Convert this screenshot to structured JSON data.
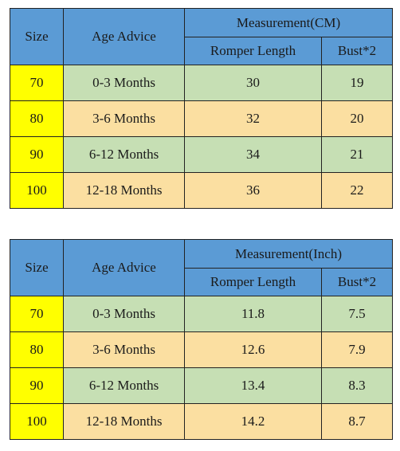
{
  "tables": [
    {
      "headers": {
        "size": "Size",
        "age": "Age Advice",
        "measurement": "Measurement(CM)",
        "romper": "Romper Length",
        "bust": "Bust*2"
      },
      "rows": [
        {
          "size": "70",
          "age": "0-3 Months",
          "romper": "30",
          "bust": "19"
        },
        {
          "size": "80",
          "age": "3-6 Months",
          "romper": "32",
          "bust": "20"
        },
        {
          "size": "90",
          "age": "6-12 Months",
          "romper": "34",
          "bust": "21"
        },
        {
          "size": "100",
          "age": "12-18 Months",
          "romper": "36",
          "bust": "22"
        }
      ]
    },
    {
      "headers": {
        "size": "Size",
        "age": "Age Advice",
        "measurement": "Measurement(Inch)",
        "romper": "Romper Length",
        "bust": "Bust*2"
      },
      "rows": [
        {
          "size": "70",
          "age": "0-3 Months",
          "romper": "11.8",
          "bust": "7.5"
        },
        {
          "size": "80",
          "age": "3-6 Months",
          "romper": "12.6",
          "bust": "7.9"
        },
        {
          "size": "90",
          "age": "6-12 Months",
          "romper": "13.4",
          "bust": "8.3"
        },
        {
          "size": "100",
          "age": "12-18 Months",
          "romper": "14.2",
          "bust": "8.7"
        }
      ]
    }
  ],
  "colors": {
    "header": "#5b9bd5",
    "size_column": "#ffff00",
    "row_green": "#c6dfb4",
    "row_tan": "#fbdfa1"
  }
}
